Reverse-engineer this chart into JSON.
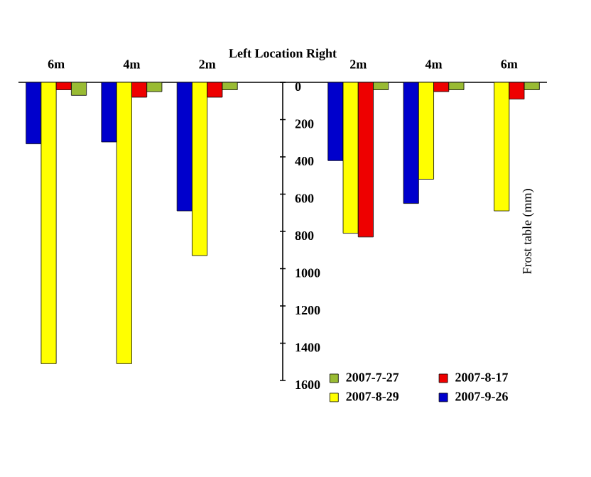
{
  "chart_data": {
    "type": "bar",
    "title": "Left   Location   Right",
    "ylabel": "Frost table (mm)",
    "categories": [
      "6m",
      "4m",
      "2m",
      null,
      "2m",
      "4m",
      "6m"
    ],
    "series": [
      {
        "name": "2007-9-26",
        "color": "#0000cc",
        "values": [
          330,
          320,
          690,
          null,
          420,
          650,
          null
        ]
      },
      {
        "name": "2007-8-29",
        "color": "#ffff00",
        "values": [
          1510,
          1510,
          930,
          null,
          810,
          520,
          690
        ]
      },
      {
        "name": "2007-8-17",
        "color": "#ee0000",
        "values": [
          40,
          80,
          80,
          null,
          830,
          50,
          90
        ]
      },
      {
        "name": "2007-7-27",
        "color": "#99bb33",
        "values": [
          70,
          50,
          40,
          null,
          40,
          40,
          40
        ]
      }
    ],
    "ylim": [
      1600,
      0
    ],
    "yticks": [
      0,
      200,
      400,
      600,
      800,
      1000,
      1200,
      1400,
      1600
    ],
    "legend": "bottom right"
  }
}
